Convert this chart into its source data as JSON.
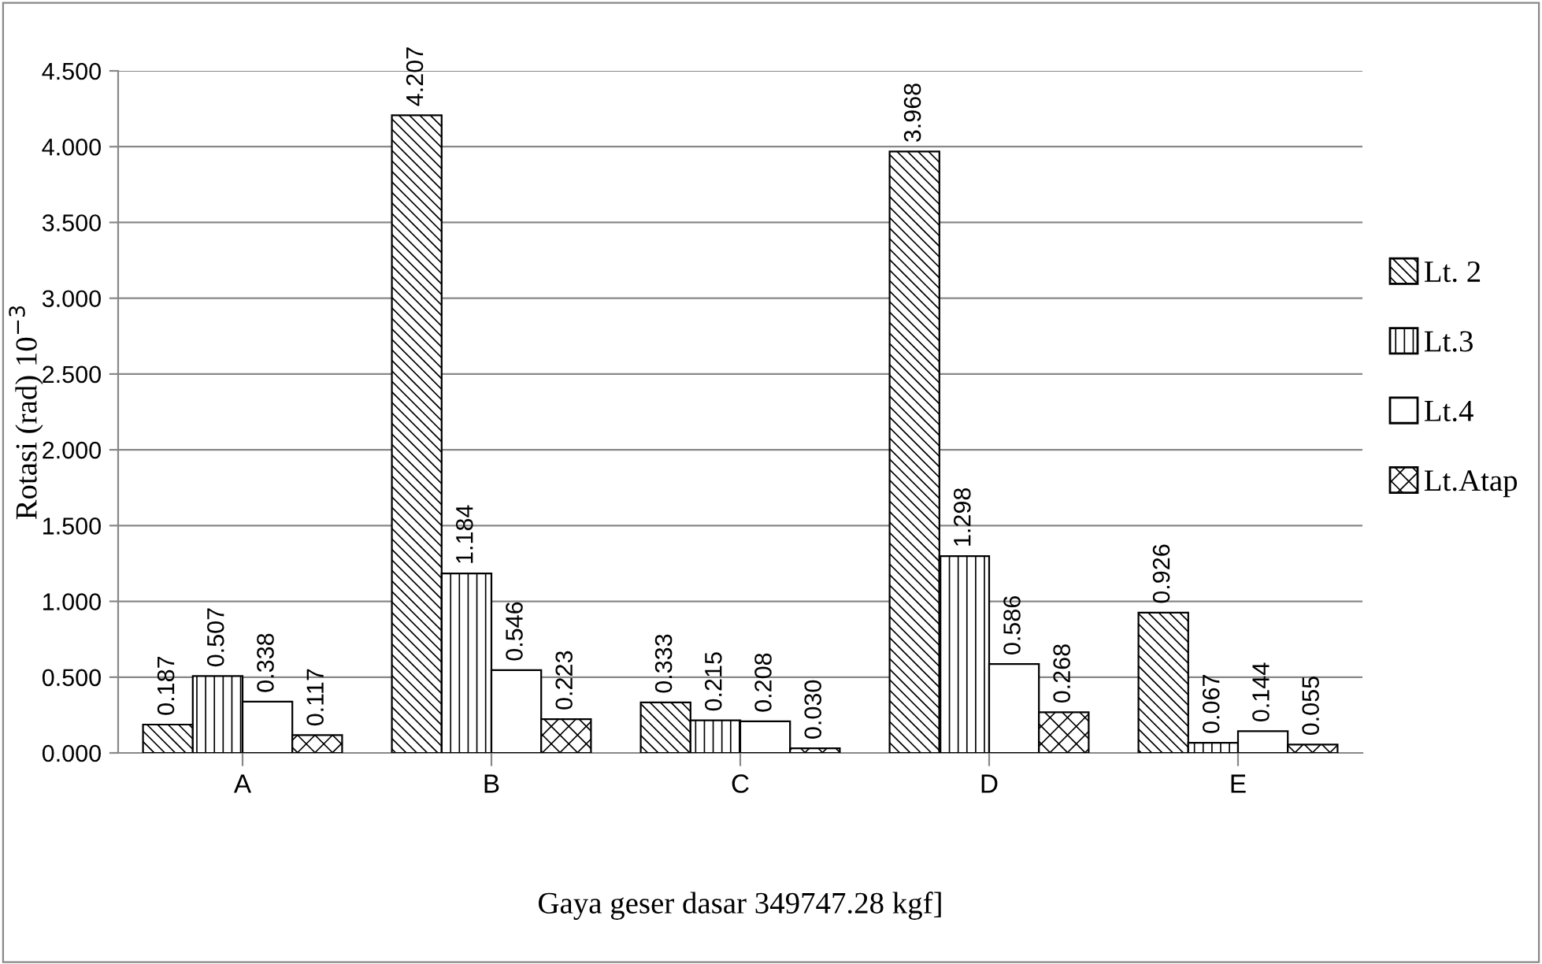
{
  "chart_data": {
    "type": "bar",
    "xlabel": "Gaya geser dasar 349747.28 kgf]",
    "ylabel": "Rotasi (rad) 10$^{−3}$",
    "categories": [
      "A",
      "B",
      "C",
      "D",
      "E"
    ],
    "series": [
      {
        "name": "Lt. 2",
        "color": "#000000",
        "values": [
          0.187,
          4.207,
          0.333,
          3.968,
          0.926
        ],
        "value_labels": [
          "0.187",
          "4.207",
          "0.333",
          "3.968",
          "0.926"
        ]
      },
      {
        "name": "Lt.3",
        "color": "#000000",
        "values": [
          0.507,
          1.184,
          0.215,
          1.298,
          0.067
        ],
        "value_labels": [
          "0.507",
          "1.184",
          "0.215",
          "1.298",
          "0.067"
        ]
      },
      {
        "name": "Lt.4",
        "color": "#000000",
        "values": [
          0.338,
          0.546,
          0.208,
          0.586,
          0.144
        ],
        "value_labels": [
          "0.338",
          "0.546",
          "0.208",
          "0.586",
          "0.144"
        ]
      },
      {
        "name": "Lt.Atap",
        "color": "#000000",
        "values": [
          0.117,
          0.223,
          0.03,
          0.268,
          0.055
        ],
        "value_labels": [
          "0.117",
          "0.223",
          "0.030",
          "0.268",
          "0.055"
        ]
      }
    ],
    "ylim": [
      0,
      4.5
    ],
    "yticks": [
      {
        "value": 0,
        "label": "0.000"
      },
      {
        "value": 0.5,
        "label": "0.500"
      },
      {
        "value": 1,
        "label": "1.000"
      },
      {
        "value": 1.5,
        "label": "1.500"
      },
      {
        "value": 2,
        "label": "2.000"
      },
      {
        "value": 2.5,
        "label": "2.500"
      },
      {
        "value": 3,
        "label": "3.000"
      },
      {
        "value": 3.5,
        "label": "3.500"
      },
      {
        "value": 4,
        "label": "4.000"
      },
      {
        "value": 4.5,
        "label": "4.500"
      }
    ],
    "grid": "y",
    "legend": "right"
  }
}
